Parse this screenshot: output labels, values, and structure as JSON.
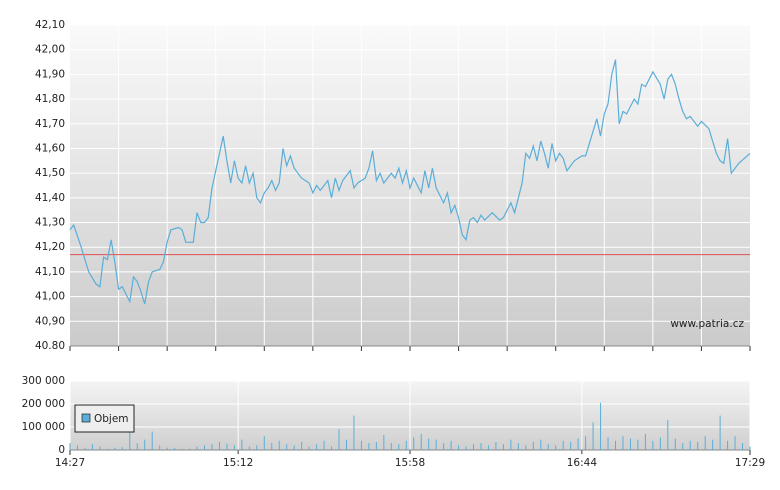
{
  "chart_data": [
    {
      "type": "line",
      "xlim": [
        "14:27",
        "17:29"
      ],
      "xminor": [
        "14:40",
        "14:53",
        "15:06",
        "15:19",
        "15:32",
        "15:45",
        "15:58",
        "16:11",
        "16:24",
        "16:37",
        "16:50",
        "17:03",
        "17:16"
      ],
      "ylim": [
        40.8,
        42.1
      ],
      "yticks": [
        {
          "value": 42.1,
          "label": "42,10"
        },
        {
          "value": 42.0,
          "label": "42,00"
        },
        {
          "value": 41.9,
          "label": "41,90"
        },
        {
          "value": 41.8,
          "label": "41,80"
        },
        {
          "value": 41.7,
          "label": "41,70"
        },
        {
          "value": 41.6,
          "label": "41,60"
        },
        {
          "value": 41.5,
          "label": "41,50"
        },
        {
          "value": 41.4,
          "label": "41,40"
        },
        {
          "value": 41.3,
          "label": "41,30"
        },
        {
          "value": 41.2,
          "label": "41,20"
        },
        {
          "value": 41.1,
          "label": "41,10"
        },
        {
          "value": 41.0,
          "label": "41,00"
        },
        {
          "value": 40.9,
          "label": "40,90"
        },
        {
          "value": 40.8,
          "label": "40.80"
        }
      ],
      "grid": true,
      "color": "#5aaed8",
      "reference_line": {
        "value": 41.17,
        "color": "#e05050"
      },
      "watermark": "www.patria.cz",
      "x": [
        "14:27",
        "14:28",
        "14:30",
        "14:32",
        "14:34",
        "14:35",
        "14:36",
        "14:37",
        "14:38",
        "14:39",
        "14:40",
        "14:41",
        "14:43",
        "14:44",
        "14:45",
        "14:46",
        "14:47",
        "14:48",
        "14:49",
        "14:51",
        "14:52",
        "14:53",
        "14:54",
        "14:56",
        "14:57",
        "14:58",
        "15:00",
        "15:01",
        "15:02",
        "15:03",
        "15:04",
        "15:05",
        "15:07",
        "15:08",
        "15:09",
        "15:10",
        "15:11",
        "15:12",
        "15:13",
        "15:14",
        "15:15",
        "15:16",
        "15:17",
        "15:18",
        "15:19",
        "15:20",
        "15:21",
        "15:22",
        "15:23",
        "15:24",
        "15:25",
        "15:26",
        "15:27",
        "15:28",
        "15:29",
        "15:31",
        "15:32",
        "15:33",
        "15:34",
        "15:36",
        "15:37",
        "15:38",
        "15:39",
        "15:40",
        "15:42",
        "15:43",
        "15:44",
        "15:46",
        "15:47",
        "15:48",
        "15:49",
        "15:50",
        "15:51",
        "15:53",
        "15:54",
        "15:55",
        "15:56",
        "15:57",
        "15:58",
        "15:59",
        "16:01",
        "16:02",
        "16:03",
        "16:04",
        "16:05",
        "16:07",
        "16:08",
        "16:09",
        "16:10",
        "16:11",
        "16:12",
        "16:13",
        "16:14",
        "16:15",
        "16:16",
        "16:17",
        "16:18",
        "16:20",
        "16:22",
        "16:23",
        "16:25",
        "16:26",
        "16:27",
        "16:28",
        "16:29",
        "16:30",
        "16:31",
        "16:32",
        "16:33",
        "16:34",
        "16:35",
        "16:36",
        "16:37",
        "16:38",
        "16:39",
        "16:40",
        "16:42",
        "16:44",
        "16:45",
        "16:47",
        "16:48",
        "16:49",
        "16:50",
        "16:51",
        "16:52",
        "16:53",
        "16:54",
        "16:55",
        "16:56",
        "16:58",
        "16:59",
        "17:00",
        "17:01",
        "17:02",
        "17:03",
        "17:05",
        "17:06",
        "17:07",
        "17:08",
        "17:09",
        "17:10",
        "17:11",
        "17:12",
        "17:13",
        "17:15",
        "17:16",
        "17:18",
        "17:19",
        "17:20",
        "17:21",
        "17:22",
        "17:23",
        "17:24",
        "17:26",
        "17:29"
      ],
      "values": [
        41.27,
        41.29,
        41.2,
        41.1,
        41.05,
        41.04,
        41.16,
        41.15,
        41.23,
        41.14,
        41.03,
        41.04,
        40.98,
        41.08,
        41.06,
        41.02,
        40.97,
        41.06,
        41.1,
        41.11,
        41.14,
        41.22,
        41.27,
        41.28,
        41.27,
        41.22,
        41.22,
        41.34,
        41.3,
        41.3,
        41.32,
        41.44,
        41.58,
        41.65,
        41.55,
        41.46,
        41.55,
        41.48,
        41.46,
        41.53,
        41.46,
        41.5,
        41.4,
        41.38,
        41.42,
        41.44,
        41.47,
        41.43,
        41.46,
        41.6,
        41.53,
        41.57,
        41.52,
        41.5,
        41.48,
        41.46,
        41.42,
        41.45,
        41.43,
        41.47,
        41.4,
        41.48,
        41.43,
        41.47,
        41.51,
        41.44,
        41.46,
        41.48,
        41.52,
        41.59,
        41.47,
        41.5,
        41.46,
        41.5,
        41.48,
        41.52,
        41.46,
        41.51,
        41.44,
        41.48,
        41.42,
        41.51,
        41.44,
        41.52,
        41.44,
        41.38,
        41.42,
        41.34,
        41.37,
        41.32,
        41.25,
        41.23,
        41.31,
        41.32,
        41.3,
        41.33,
        41.31,
        41.34,
        41.31,
        41.32,
        41.38,
        41.34,
        41.4,
        41.46,
        41.58,
        41.56,
        41.61,
        41.55,
        41.63,
        41.58,
        41.52,
        41.62,
        41.55,
        41.58,
        41.56,
        41.51,
        41.55,
        41.57,
        41.57,
        41.67,
        41.72,
        41.65,
        41.74,
        41.78,
        41.9,
        41.96,
        41.7,
        41.75,
        41.74,
        41.8,
        41.78,
        41.86,
        41.85,
        41.88,
        41.91,
        41.86,
        41.8,
        41.88,
        41.9,
        41.86,
        41.8,
        41.75,
        41.72,
        41.73,
        41.69,
        41.71,
        41.68,
        41.63,
        41.58,
        41.55,
        41.54,
        41.64,
        41.5,
        41.54,
        41.58
      ]
    },
    {
      "type": "bar",
      "xlim": [
        "14:27",
        "17:29"
      ],
      "xticks": [
        "14:27",
        "15:12",
        "15:58",
        "16:44",
        "17:29"
      ],
      "ylim": [
        0,
        300000
      ],
      "yticks": [
        0,
        {
          "value": 100000,
          "label": "100 000"
        },
        {
          "value": 200000,
          "label": "200 000"
        },
        {
          "value": 300000,
          "label": "300 000"
        }
      ],
      "grid": true,
      "legend": "upper left",
      "x": [
        "14:27",
        "14:29",
        "14:31",
        "14:33",
        "14:35",
        "14:37",
        "14:39",
        "14:41",
        "14:43",
        "14:45",
        "14:47",
        "14:49",
        "14:51",
        "14:53",
        "14:55",
        "14:57",
        "14:59",
        "15:01",
        "15:03",
        "15:05",
        "15:07",
        "15:09",
        "15:11",
        "15:13",
        "15:15",
        "15:17",
        "15:19",
        "15:21",
        "15:23",
        "15:25",
        "15:27",
        "15:29",
        "15:31",
        "15:33",
        "15:35",
        "15:37",
        "15:39",
        "15:41",
        "15:43",
        "15:45",
        "15:47",
        "15:49",
        "15:51",
        "15:53",
        "15:55",
        "15:57",
        "15:59",
        "16:01",
        "16:03",
        "16:05",
        "16:07",
        "16:09",
        "16:11",
        "16:13",
        "16:15",
        "16:17",
        "16:19",
        "16:21",
        "16:23",
        "16:25",
        "16:27",
        "16:29",
        "16:31",
        "16:33",
        "16:35",
        "16:37",
        "16:39",
        "16:41",
        "16:43",
        "16:45",
        "16:47",
        "16:49",
        "16:51",
        "16:53",
        "16:55",
        "16:57",
        "16:59",
        "17:01",
        "17:03",
        "17:05",
        "17:07",
        "17:09",
        "17:11",
        "17:13",
        "17:15",
        "17:17",
        "17:19",
        "17:21",
        "17:23",
        "17:25",
        "17:27",
        "17:29"
      ],
      "series": [
        {
          "name": "Objem",
          "color": "#5aaed8",
          "values": [
            30000,
            20000,
            8000,
            25000,
            15000,
            5000,
            10000,
            12000,
            180000,
            30000,
            45000,
            80000,
            20000,
            10000,
            8000,
            5000,
            6000,
            15000,
            20000,
            25000,
            35000,
            28000,
            20000,
            45000,
            15000,
            20000,
            60000,
            30000,
            40000,
            25000,
            20000,
            35000,
            15000,
            25000,
            40000,
            15000,
            90000,
            45000,
            150000,
            40000,
            30000,
            35000,
            65000,
            30000,
            25000,
            40000,
            55000,
            70000,
            50000,
            45000,
            30000,
            40000,
            20000,
            15000,
            25000,
            30000,
            20000,
            35000,
            25000,
            45000,
            30000,
            20000,
            35000,
            45000,
            25000,
            20000,
            40000,
            35000,
            50000,
            60000,
            120000,
            205000,
            55000,
            40000,
            60000,
            50000,
            45000,
            70000,
            40000,
            55000,
            130000,
            50000,
            30000,
            40000,
            35000,
            60000,
            45000,
            150000,
            40000,
            60000,
            30000,
            15000
          ]
        }
      ]
    }
  ]
}
